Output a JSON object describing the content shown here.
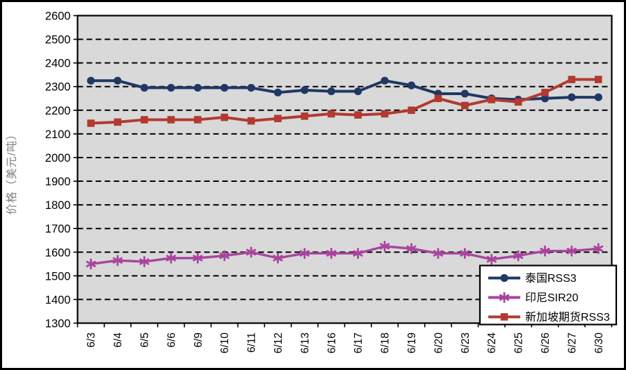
{
  "chart_data": {
    "type": "line",
    "title": "",
    "ylabel": "价格（美元/吨）",
    "xlabel": "",
    "ylim": [
      1300,
      2600
    ],
    "ytick_step": 100,
    "grid": "horizontal-dashed-black",
    "plot_bg": "#d9d9d9",
    "axis_color": "#000000",
    "ylabel_color": "#808080",
    "legend_position": "inside-bottom-right",
    "categories": [
      "6/3",
      "6/4",
      "6/5",
      "6/6",
      "6/9",
      "6/10",
      "6/11",
      "6/12",
      "6/13",
      "6/16",
      "6/17",
      "6/18",
      "6/19",
      "6/20",
      "6/23",
      "6/24",
      "6/25",
      "6/26",
      "6/27",
      "6/30"
    ],
    "series": [
      {
        "name": "泰国RSS3",
        "id": "thailand-rss3",
        "color": "#1f3864",
        "marker": "circle",
        "values": [
          2325,
          2325,
          2295,
          2295,
          2295,
          2295,
          2295,
          2275,
          2285,
          2280,
          2280,
          2325,
          2305,
          2270,
          2270,
          2250,
          2245,
          2250,
          2255,
          2255
        ]
      },
      {
        "name": "印尼SIR20",
        "id": "indonesia-sir20",
        "color": "#a9449e",
        "marker": "asterisk",
        "values": [
          1550,
          1565,
          1560,
          1575,
          1575,
          1585,
          1600,
          1575,
          1595,
          1595,
          1595,
          1625,
          1615,
          1595,
          1595,
          1570,
          1585,
          1605,
          1605,
          1615
        ]
      },
      {
        "name": "新加坡期货RSS3",
        "id": "singapore-futures-rss3",
        "color": "#b23a30",
        "marker": "square",
        "values": [
          2145,
          2150,
          2160,
          2160,
          2160,
          2170,
          2155,
          2165,
          2175,
          2185,
          2180,
          2185,
          2200,
          2250,
          2220,
          2245,
          2235,
          2275,
          2330,
          2330
        ]
      }
    ]
  }
}
